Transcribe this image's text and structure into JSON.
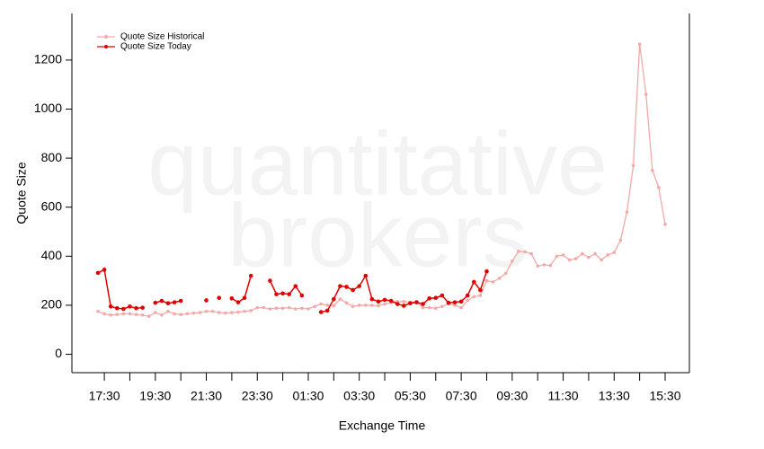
{
  "chart_data": {
    "type": "line",
    "watermark": [
      "quantitative",
      "brokers"
    ],
    "xlabel": "Exchange Time",
    "ylabel": "Quote Size",
    "categories": [
      null,
      "17:30",
      null,
      null,
      null,
      null,
      null,
      null,
      null,
      "19:30",
      null,
      null,
      null,
      null,
      null,
      null,
      null,
      "21:30",
      null,
      null,
      null,
      null,
      null,
      null,
      null,
      "23:30",
      null,
      null,
      null,
      null,
      null,
      null,
      null,
      "01:30",
      null,
      null,
      null,
      null,
      null,
      null,
      null,
      "03:30",
      null,
      null,
      null,
      null,
      null,
      null,
      null,
      "05:30",
      null,
      null,
      null,
      null,
      null,
      null,
      null,
      "07:30",
      null,
      null,
      null,
      null,
      null,
      null,
      null,
      "09:30",
      null,
      null,
      null,
      null,
      null,
      null,
      null,
      "11:30",
      null,
      null,
      null,
      null,
      null,
      null,
      null,
      "13:30",
      null,
      null,
      null,
      null,
      null,
      null,
      null,
      "15:30"
    ],
    "series": [
      {
        "name": "Quote Size Historical",
        "color": "#f4a9a9",
        "values": [
          175,
          165,
          160,
          162,
          165,
          165,
          162,
          160,
          155,
          170,
          160,
          175,
          165,
          162,
          165,
          168,
          170,
          175,
          175,
          170,
          168,
          170,
          172,
          175,
          178,
          190,
          190,
          185,
          188,
          188,
          190,
          185,
          188,
          185,
          195,
          205,
          200,
          198,
          225,
          210,
          195,
          200,
          200,
          200,
          198,
          205,
          210,
          215,
          215,
          212,
          215,
          190,
          190,
          188,
          195,
          205,
          200,
          190,
          220,
          235,
          240,
          300,
          295,
          310,
          330,
          380,
          420,
          418,
          410,
          360,
          365,
          362,
          400,
          405,
          385,
          390,
          410,
          395,
          410,
          385,
          405,
          415,
          465,
          580,
          770,
          1265,
          1060,
          750,
          680,
          530
        ]
      },
      {
        "name": "Quote Size Today",
        "color": "#e00000",
        "values": [
          332,
          345,
          195,
          188,
          185,
          195,
          188,
          190,
          null,
          210,
          218,
          208,
          212,
          218,
          null,
          null,
          null,
          220,
          null,
          230,
          null,
          228,
          212,
          230,
          320,
          null,
          null,
          300,
          245,
          248,
          245,
          278,
          240,
          null,
          null,
          172,
          178,
          225,
          278,
          275,
          262,
          278,
          320,
          225,
          215,
          222,
          218,
          205,
          198,
          208,
          212,
          205,
          228,
          230,
          240,
          210,
          212,
          215,
          240,
          295,
          262,
          338,
          null,
          null,
          null,
          null,
          null,
          null,
          null,
          null,
          null,
          null,
          null,
          null,
          null,
          null,
          null,
          null,
          null,
          null,
          null,
          null,
          null,
          null,
          null,
          null,
          null,
          null,
          null,
          null
        ]
      }
    ],
    "ylim": [
      -75,
      1390
    ],
    "yticks": [
      0,
      200,
      400,
      600,
      800,
      1000,
      1200
    ],
    "legend": "upper left"
  }
}
